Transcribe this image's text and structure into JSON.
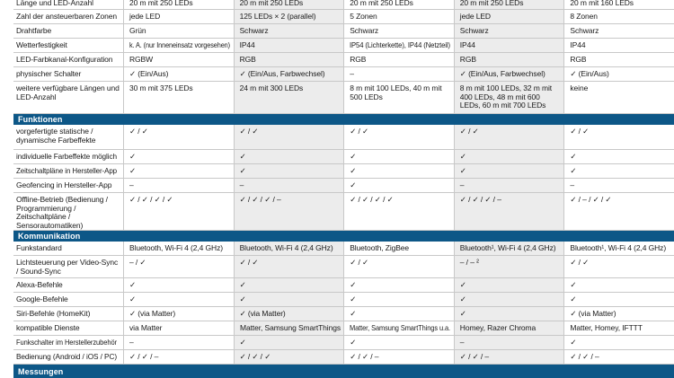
{
  "colors": {
    "section_header_bg": "#0d5787",
    "section_header_text": "#ffffff",
    "shaded_column_bg": "#ececec",
    "grid_line": "#c8c8c8",
    "check_glyph": "✓",
    "dash_glyph": "–"
  },
  "table": {
    "sections": [
      {
        "header": null,
        "rows": [
          {
            "label": "Länge und LED-Anzahl",
            "values": [
              "20 m mit 250 LEDs",
              "20 m mit 250 LEDs",
              "20 m mit 250 LEDs",
              "20 m mit 250 LEDs",
              "20 m mit 160 LEDs"
            ]
          },
          {
            "label": "Zahl der ansteuerbaren Zonen",
            "values": [
              "jede LED",
              "125 LEDs × 2 (parallel)",
              "5 Zonen",
              "jede LED",
              "8 Zonen"
            ]
          },
          {
            "label": "Drahtfarbe",
            "values": [
              "Grün",
              "Schwarz",
              "Schwarz",
              "Schwarz",
              "Schwarz"
            ]
          },
          {
            "label": "Wetterfestigkeit",
            "values": [
              "k. A. (nur Inneneinsatz vorgesehen)",
              "IP44",
              "IP54 (Lichterkette), IP44 (Netzteil)",
              "IP44",
              "IP44"
            ]
          },
          {
            "label": "LED-Farbkanal-Konfiguration",
            "values": [
              "RGBW",
              "RGB",
              "RGB",
              "RGB",
              "RGB"
            ]
          },
          {
            "label": "physischer Schalter",
            "values": [
              "✓ (Ein/Aus)",
              "✓ (Ein/Aus, Farbwechsel)",
              "–",
              "✓ (Ein/Aus, Farbwechsel)",
              "✓ (Ein/Aus)"
            ]
          },
          {
            "label": "weitere verfügbare Längen und LED-Anzahl",
            "values": [
              "30 m mit 375 LEDs",
              "24 m mit 300 LEDs",
              "8 m mit 100 LEDs, 40 m mit 500 LEDs",
              "8 m mit 100 LEDs, 32 m mit 400 LEDs, 48 m mit 600 LEDs, 60 m mit 700 LEDs",
              "keine"
            ]
          }
        ]
      },
      {
        "header": "Funktionen",
        "rows": [
          {
            "label": "vorgefertigte statische / dynamische Farbeffekte",
            "values": [
              "✓ / ✓",
              "✓ / ✓",
              "✓ / ✓",
              "✓ / ✓",
              "✓ / ✓"
            ]
          },
          {
            "label": "individuelle Farbeffekte möglich",
            "values": [
              "✓",
              "✓",
              "✓",
              "✓",
              "✓"
            ]
          },
          {
            "label": "Zeitschaltpläne in Hersteller-App",
            "values": [
              "✓",
              "✓",
              "✓",
              "✓",
              "✓"
            ]
          },
          {
            "label": "Geofencing in Hersteller-App",
            "values": [
              "–",
              "–",
              "✓",
              "–",
              "–"
            ]
          },
          {
            "label": "Offline-Betrieb (Bedienung / Programmierung / Zeitschaltpläne / Sensorautomatiken)",
            "values": [
              "✓ / ✓ / ✓ / ✓",
              "✓ / ✓ / ✓ / –",
              "✓ / ✓ / ✓ / ✓",
              "✓ / ✓ / ✓ / –",
              "✓ / – / ✓ / ✓"
            ]
          }
        ]
      },
      {
        "header": "Kommunikation",
        "rows": [
          {
            "label": "Funkstandard",
            "values": [
              "Bluetooth, Wi-Fi 4 (2,4 GHz)",
              "Bluetooth, Wi-Fi 4 (2,4 GHz)",
              "Bluetooth, ZigBee",
              "Bluetooth¹, Wi-Fi 4 (2,4 GHz)",
              "Bluetooth¹, Wi-Fi 4 (2,4 GHz)"
            ]
          },
          {
            "label": "Lichtsteuerung per Video-Sync / Sound-Sync",
            "values": [
              "– / ✓",
              "✓ / ✓",
              "✓ / ✓",
              "– / – ²",
              "✓ / ✓"
            ]
          },
          {
            "label": "Alexa-Befehle",
            "values": [
              "✓",
              "✓",
              "✓",
              "✓",
              "✓"
            ]
          },
          {
            "label": "Google-Befehle",
            "values": [
              "✓",
              "✓",
              "✓",
              "✓",
              "✓"
            ]
          },
          {
            "label": "Siri-Befehle (HomeKit)",
            "values": [
              "✓ (via Matter)",
              "✓ (via Matter)",
              "✓",
              "✓",
              "✓ (via Matter)"
            ]
          },
          {
            "label": "kompatible Dienste",
            "values": [
              "via Matter",
              "Matter, Samsung SmartThings",
              "Matter, Samsung SmartThings u.a.",
              "Homey, Razer Chroma",
              "Matter, Homey, IFTTT"
            ]
          },
          {
            "label": "Funkschalter im Herstellerzubehör",
            "values": [
              "–",
              "✓",
              "✓",
              "–",
              "✓"
            ]
          },
          {
            "label": "Bedienung (Android / iOS / PC)",
            "values": [
              "✓ / ✓ / –",
              "✓ / ✓ / ✓",
              "✓ / ✓ / –",
              "✓ / ✓ / –",
              "✓ / ✓ / –"
            ]
          }
        ]
      },
      {
        "header": "Messungen",
        "rows": []
      }
    ]
  }
}
